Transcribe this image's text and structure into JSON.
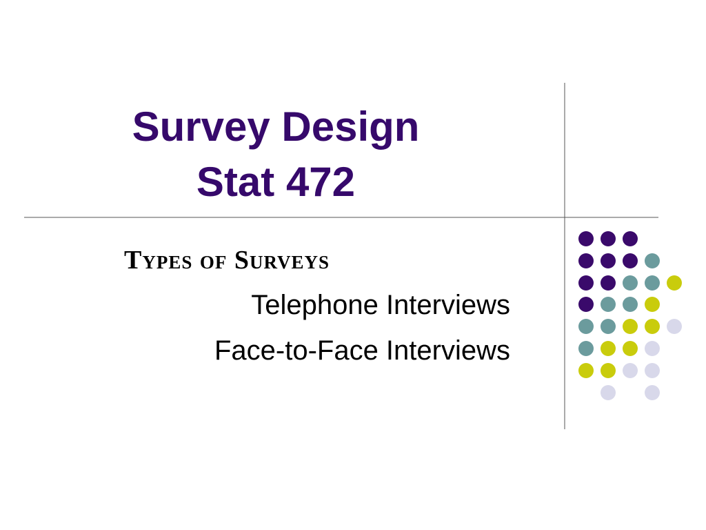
{
  "title": {
    "line1": "Survey Design",
    "line2": "Stat 472"
  },
  "section": {
    "heading": "Types of Surveys",
    "items": [
      "Telephone Interviews",
      "Face-to-Face Interviews"
    ]
  }
}
